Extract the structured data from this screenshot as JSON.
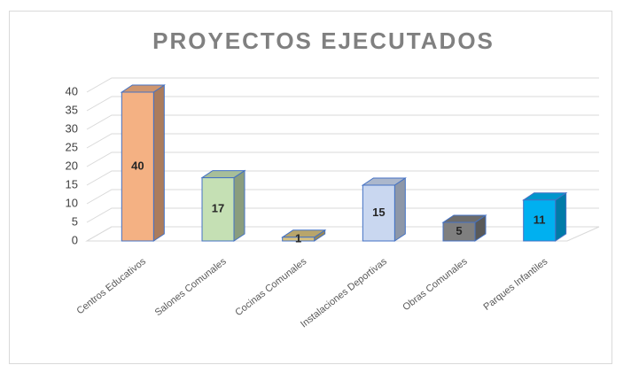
{
  "chart_data": {
    "type": "bar3d",
    "title": "PROYECTOS EJECUTADOS",
    "categories": [
      "Centros Educativos",
      "Salones Comunales",
      "Cocinas Comunales",
      "Instalaciones Deportivas",
      "Obras Comunales",
      "Parques Infantiles"
    ],
    "values": [
      40,
      17,
      1,
      15,
      5,
      11
    ],
    "colors": [
      "#f4b183",
      "#c5e0b4",
      "#d9c27e",
      "#c9d7f0",
      "#7f7f7f",
      "#00b0f0"
    ],
    "ylim": [
      0,
      40
    ],
    "yticks": [
      0,
      5,
      10,
      15,
      20,
      25,
      30,
      35,
      40
    ],
    "grid": true
  }
}
